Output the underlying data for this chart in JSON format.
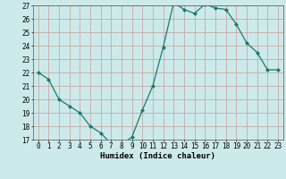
{
  "x": [
    0,
    1,
    2,
    3,
    4,
    5,
    6,
    7,
    8,
    9,
    10,
    11,
    12,
    13,
    14,
    15,
    16,
    17,
    18,
    19,
    20,
    21,
    22,
    23
  ],
  "y": [
    22.0,
    21.5,
    20.0,
    19.5,
    19.0,
    18.0,
    17.5,
    16.7,
    16.6,
    17.2,
    19.2,
    21.0,
    23.9,
    27.2,
    26.7,
    26.4,
    27.1,
    26.8,
    26.7,
    25.6,
    24.2,
    23.5,
    22.2,
    22.2
  ],
  "line_color": "#1a7a6e",
  "marker": "D",
  "marker_size": 2.0,
  "bg_color": "#cdeaea",
  "grid_color": "#c8a8a8",
  "xlabel": "Humidex (Indice chaleur)",
  "ylim": [
    17,
    27
  ],
  "xlim": [
    -0.5,
    23.5
  ],
  "yticks": [
    17,
    18,
    19,
    20,
    21,
    22,
    23,
    24,
    25,
    26,
    27
  ],
  "xticks": [
    0,
    1,
    2,
    3,
    4,
    5,
    6,
    7,
    8,
    9,
    10,
    11,
    12,
    13,
    14,
    15,
    16,
    17,
    18,
    19,
    20,
    21,
    22,
    23
  ],
  "tick_fontsize": 5.5,
  "label_fontsize": 6.5
}
